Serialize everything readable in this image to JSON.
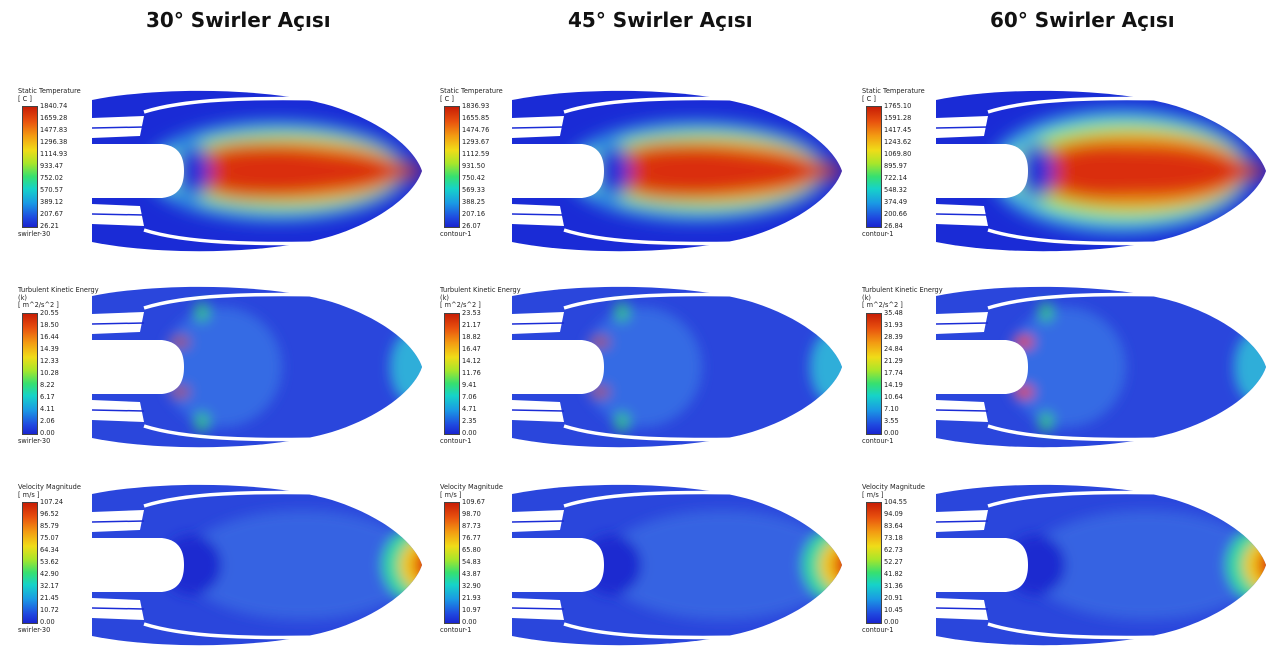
{
  "columns": [
    {
      "title": "30° Swirler Açısı",
      "case": "swirler-30"
    },
    {
      "title": "45° Swirler Açısı",
      "case": "contour-1"
    },
    {
      "title": "60° Swirler Açısı",
      "case": "contour-1"
    }
  ],
  "rows": [
    {
      "variable": "Static Temperature",
      "sub": "",
      "unit": "[ C ]",
      "ticks": [
        [
          "1840.74",
          "1659.28",
          "1477.83",
          "1296.38",
          "1114.93",
          "933.47",
          "752.02",
          "570.57",
          "389.12",
          "207.67",
          "26.21"
        ],
        [
          "1836.93",
          "1655.85",
          "1474.76",
          "1293.67",
          "1112.59",
          "931.50",
          "750.42",
          "569.33",
          "388.25",
          "207.16",
          "26.07"
        ],
        [
          "1765.10",
          "1591.28",
          "1417.45",
          "1243.62",
          "1069.80",
          "895.97",
          "722.14",
          "548.32",
          "374.49",
          "200.66",
          "26.84"
        ]
      ]
    },
    {
      "variable": "Turbulent Kinetic Energy",
      "sub": "(k)",
      "unit": "[ m^2/s^2 ]",
      "ticks": [
        [
          "20.55",
          "18.50",
          "16.44",
          "14.39",
          "12.33",
          "10.28",
          "8.22",
          "6.17",
          "4.11",
          "2.06",
          "0.00"
        ],
        [
          "23.53",
          "21.17",
          "18.82",
          "16.47",
          "14.12",
          "11.76",
          "9.41",
          "7.06",
          "4.71",
          "2.35",
          "0.00"
        ],
        [
          "35.48",
          "31.93",
          "28.39",
          "24.84",
          "21.29",
          "17.74",
          "14.19",
          "10.64",
          "7.10",
          "3.55",
          "0.00"
        ]
      ]
    },
    {
      "variable": "Velocity Magnitude",
      "sub": "",
      "unit": "[ m/s ]",
      "ticks": [
        [
          "107.24",
          "96.52",
          "85.79",
          "75.07",
          "64.34",
          "53.62",
          "42.90",
          "32.17",
          "21.45",
          "10.72",
          "0.00"
        ],
        [
          "109.67",
          "98.70",
          "87.73",
          "76.77",
          "65.80",
          "54.83",
          "43.87",
          "32.90",
          "21.93",
          "10.97",
          "0.00"
        ],
        [
          "104.55",
          "94.09",
          "83.64",
          "73.18",
          "62.73",
          "52.27",
          "41.82",
          "31.36",
          "20.91",
          "10.45",
          "0.00"
        ]
      ]
    }
  ]
}
